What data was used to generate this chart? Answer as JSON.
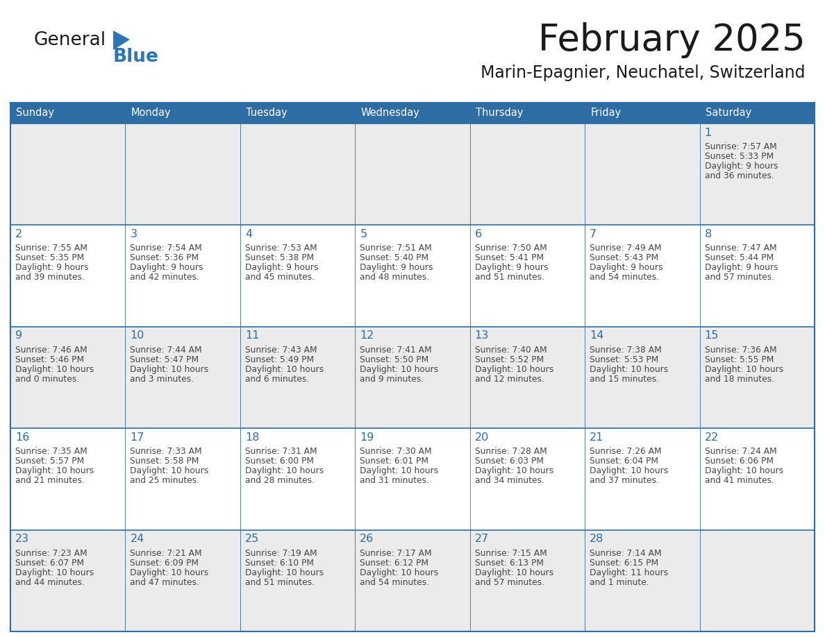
{
  "title": "February 2025",
  "subtitle": "Marin-Epagnier, Neuchatel, Switzerland",
  "days_of_week": [
    "Sunday",
    "Monday",
    "Tuesday",
    "Wednesday",
    "Thursday",
    "Friday",
    "Saturday"
  ],
  "header_bg": "#2E6DA4",
  "header_text": "#FFFFFF",
  "cell_bg_light": "#EBEBEB",
  "cell_bg_white": "#FFFFFF",
  "day_number_color": "#2E6DA4",
  "text_color": "#444444",
  "border_color": "#2E6DA4",
  "logo_general_color": "#1a1a1a",
  "logo_blue_color": "#2E75B6",
  "calendar_data": [
    [
      null,
      null,
      null,
      null,
      null,
      null,
      {
        "day": 1,
        "sunrise": "7:57 AM",
        "sunset": "5:33 PM",
        "daylight": "9 hours and 36 minutes."
      }
    ],
    [
      {
        "day": 2,
        "sunrise": "7:55 AM",
        "sunset": "5:35 PM",
        "daylight": "9 hours and 39 minutes."
      },
      {
        "day": 3,
        "sunrise": "7:54 AM",
        "sunset": "5:36 PM",
        "daylight": "9 hours and 42 minutes."
      },
      {
        "day": 4,
        "sunrise": "7:53 AM",
        "sunset": "5:38 PM",
        "daylight": "9 hours and 45 minutes."
      },
      {
        "day": 5,
        "sunrise": "7:51 AM",
        "sunset": "5:40 PM",
        "daylight": "9 hours and 48 minutes."
      },
      {
        "day": 6,
        "sunrise": "7:50 AM",
        "sunset": "5:41 PM",
        "daylight": "9 hours and 51 minutes."
      },
      {
        "day": 7,
        "sunrise": "7:49 AM",
        "sunset": "5:43 PM",
        "daylight": "9 hours and 54 minutes."
      },
      {
        "day": 8,
        "sunrise": "7:47 AM",
        "sunset": "5:44 PM",
        "daylight": "9 hours and 57 minutes."
      }
    ],
    [
      {
        "day": 9,
        "sunrise": "7:46 AM",
        "sunset": "5:46 PM",
        "daylight": "10 hours and 0 minutes."
      },
      {
        "day": 10,
        "sunrise": "7:44 AM",
        "sunset": "5:47 PM",
        "daylight": "10 hours and 3 minutes."
      },
      {
        "day": 11,
        "sunrise": "7:43 AM",
        "sunset": "5:49 PM",
        "daylight": "10 hours and 6 minutes."
      },
      {
        "day": 12,
        "sunrise": "7:41 AM",
        "sunset": "5:50 PM",
        "daylight": "10 hours and 9 minutes."
      },
      {
        "day": 13,
        "sunrise": "7:40 AM",
        "sunset": "5:52 PM",
        "daylight": "10 hours and 12 minutes."
      },
      {
        "day": 14,
        "sunrise": "7:38 AM",
        "sunset": "5:53 PM",
        "daylight": "10 hours and 15 minutes."
      },
      {
        "day": 15,
        "sunrise": "7:36 AM",
        "sunset": "5:55 PM",
        "daylight": "10 hours and 18 minutes."
      }
    ],
    [
      {
        "day": 16,
        "sunrise": "7:35 AM",
        "sunset": "5:57 PM",
        "daylight": "10 hours and 21 minutes."
      },
      {
        "day": 17,
        "sunrise": "7:33 AM",
        "sunset": "5:58 PM",
        "daylight": "10 hours and 25 minutes."
      },
      {
        "day": 18,
        "sunrise": "7:31 AM",
        "sunset": "6:00 PM",
        "daylight": "10 hours and 28 minutes."
      },
      {
        "day": 19,
        "sunrise": "7:30 AM",
        "sunset": "6:01 PM",
        "daylight": "10 hours and 31 minutes."
      },
      {
        "day": 20,
        "sunrise": "7:28 AM",
        "sunset": "6:03 PM",
        "daylight": "10 hours and 34 minutes."
      },
      {
        "day": 21,
        "sunrise": "7:26 AM",
        "sunset": "6:04 PM",
        "daylight": "10 hours and 37 minutes."
      },
      {
        "day": 22,
        "sunrise": "7:24 AM",
        "sunset": "6:06 PM",
        "daylight": "10 hours and 41 minutes."
      }
    ],
    [
      {
        "day": 23,
        "sunrise": "7:23 AM",
        "sunset": "6:07 PM",
        "daylight": "10 hours and 44 minutes."
      },
      {
        "day": 24,
        "sunrise": "7:21 AM",
        "sunset": "6:09 PM",
        "daylight": "10 hours and 47 minutes."
      },
      {
        "day": 25,
        "sunrise": "7:19 AM",
        "sunset": "6:10 PM",
        "daylight": "10 hours and 51 minutes."
      },
      {
        "day": 26,
        "sunrise": "7:17 AM",
        "sunset": "6:12 PM",
        "daylight": "10 hours and 54 minutes."
      },
      {
        "day": 27,
        "sunrise": "7:15 AM",
        "sunset": "6:13 PM",
        "daylight": "10 hours and 57 minutes."
      },
      {
        "day": 28,
        "sunrise": "7:14 AM",
        "sunset": "6:15 PM",
        "daylight": "11 hours and 1 minute."
      },
      null
    ]
  ]
}
